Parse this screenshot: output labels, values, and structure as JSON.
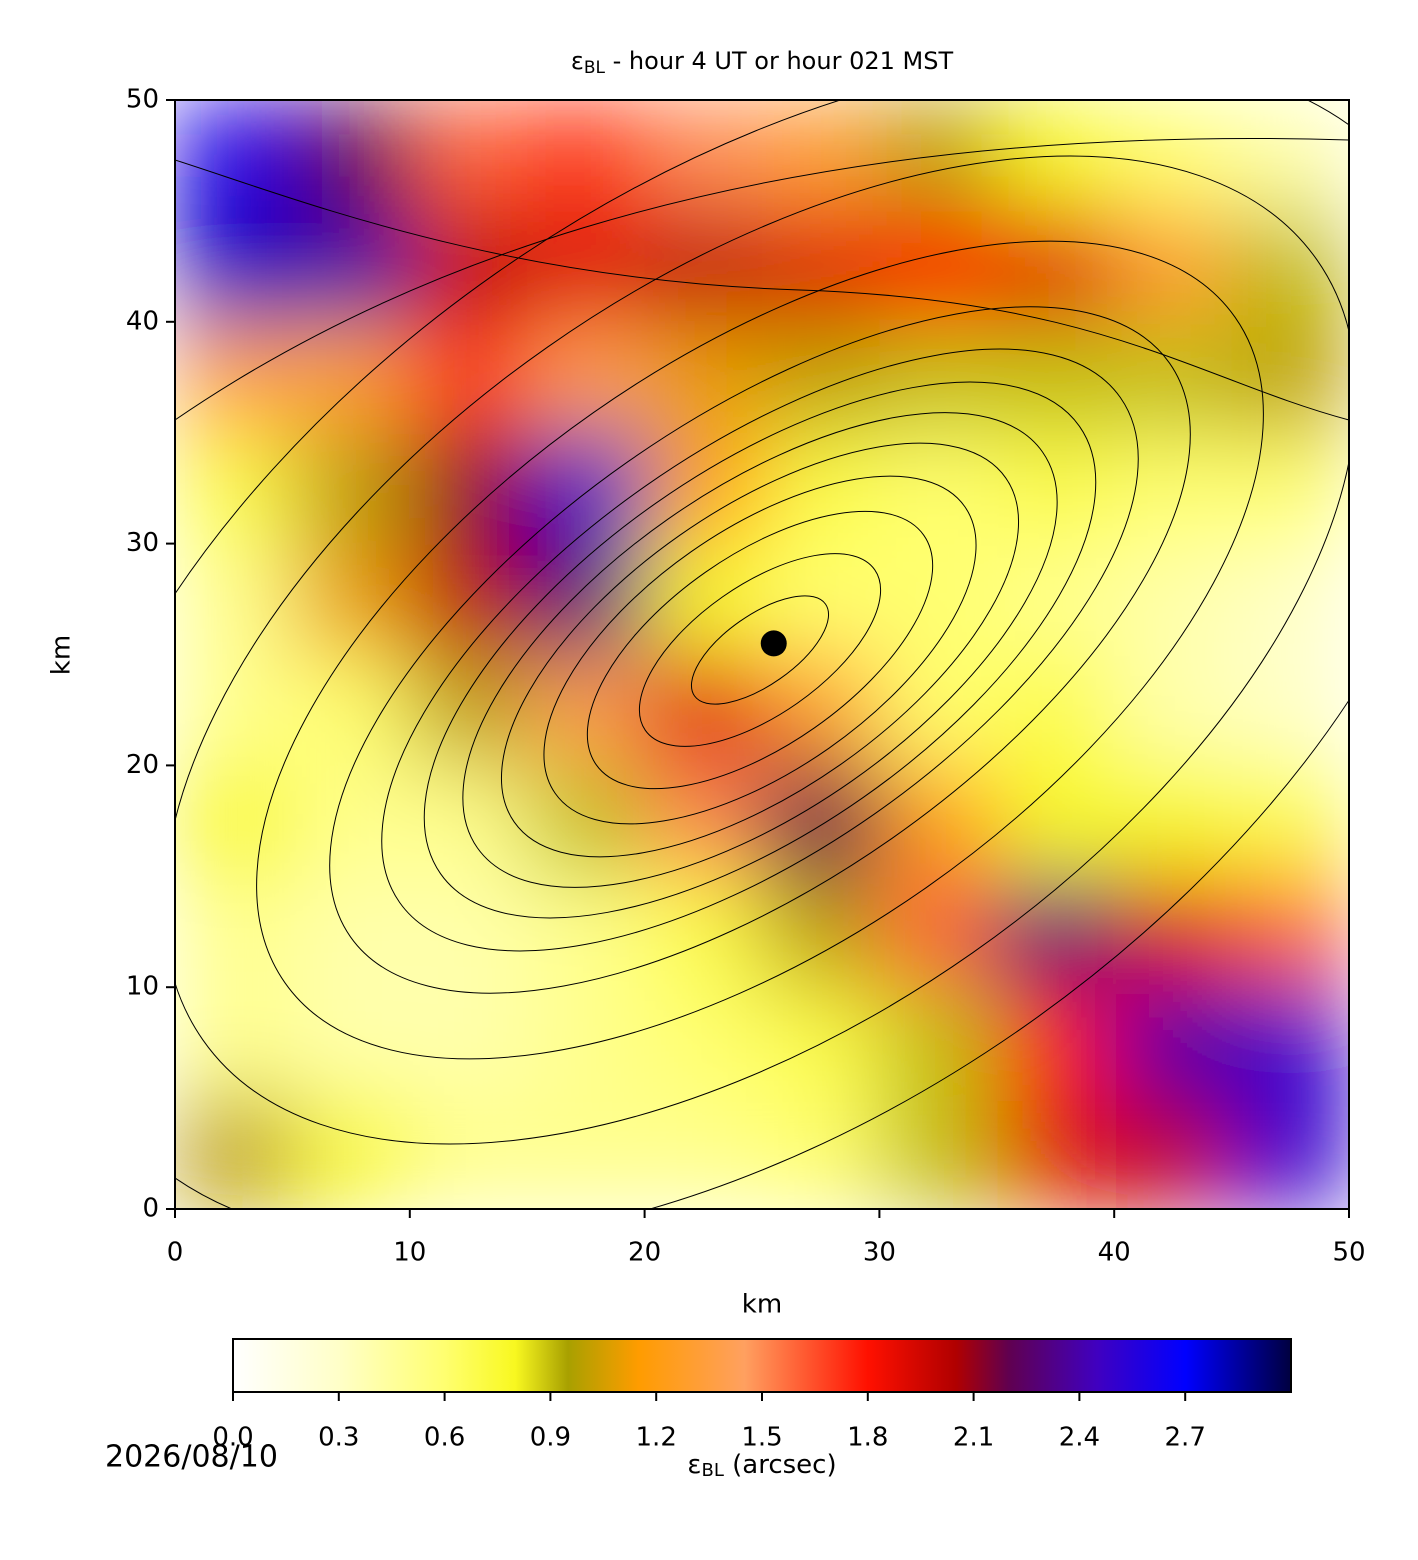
{
  "chart_data": {
    "type": "heatmap",
    "title": {
      "symbol": "ε",
      "subscript": "BL",
      "text": " - hour 4 UT or hour 021 MST"
    },
    "xlabel": "km",
    "ylabel": "km",
    "xlim": [
      0,
      50
    ],
    "ylim": [
      0,
      50
    ],
    "xticks": [
      0,
      10,
      20,
      30,
      40,
      50
    ],
    "yticks": [
      0,
      10,
      20,
      30,
      40,
      50
    ],
    "z": [
      [
        1.0,
        0.8,
        0.5,
        0.5,
        0.5,
        0.6,
        0.9,
        1.9,
        2.0,
        2.5
      ],
      [
        0.5,
        0.4,
        0.4,
        0.5,
        0.6,
        0.7,
        0.9,
        1.8,
        2.4,
        2.5
      ],
      [
        0.5,
        0.4,
        0.4,
        0.5,
        0.7,
        1.0,
        1.6,
        2.3,
        1.9,
        1.6
      ],
      [
        0.8,
        0.5,
        0.5,
        0.9,
        1.5,
        2.2,
        1.2,
        0.8,
        0.8,
        0.7
      ],
      [
        0.5,
        0.6,
        1.0,
        1.4,
        1.9,
        1.3,
        0.6,
        0.7,
        0.4,
        0.3
      ],
      [
        0.5,
        1.1,
        2.0,
        2.3,
        0.8,
        0.6,
        0.6,
        0.5,
        0.4,
        0.3
      ],
      [
        0.7,
        1.0,
        2.1,
        2.5,
        1.2,
        0.7,
        0.6,
        0.7,
        0.6,
        0.6
      ],
      [
        1.4,
        1.3,
        1.7,
        1.4,
        1.1,
        1.0,
        0.9,
        0.9,
        0.9,
        1.0
      ],
      [
        2.8,
        2.4,
        2.0,
        1.9,
        2.0,
        1.9,
        1.8,
        1.9,
        1.3,
        0.9
      ],
      [
        2.6,
        2.2,
        1.6,
        1.7,
        1.5,
        1.3,
        1.0,
        0.8,
        0.6,
        0.4
      ]
    ],
    "marker": {
      "x": 25.5,
      "y": 25.5,
      "color": "#000000"
    },
    "colorbar": {
      "label": {
        "symbol": "ε",
        "subscript": "BL",
        "text": " (arcsec)"
      },
      "lim": [
        0,
        3.0
      ],
      "ticks": [
        {
          "value": 0,
          "label": "0.0"
        },
        0.3,
        0.6,
        0.9,
        1.2,
        1.5,
        1.8,
        2.1,
        2.4,
        2.7
      ],
      "colormap": [
        {
          "value": 0,
          "color": "#ffffff"
        },
        {
          "value": 0.3,
          "color": "#ffffc8"
        },
        {
          "value": 0.6,
          "color": "#ffff70"
        },
        {
          "value": 0.8,
          "color": "#f8f820"
        },
        {
          "value": 0.95,
          "color": "#a8a000"
        },
        {
          "value": 1.15,
          "color": "#ff9c00"
        },
        {
          "value": 1.45,
          "color": "#ffa060"
        },
        {
          "value": 1.8,
          "color": "#ff1000"
        },
        {
          "value": 2.05,
          "color": "#b00000"
        },
        {
          "value": 2.2,
          "color": "#600050"
        },
        {
          "value": 2.45,
          "color": "#4000c0"
        },
        {
          "value": 2.7,
          "color": "#0000ff"
        },
        {
          "value": 3.0,
          "color": "#000040"
        }
      ]
    },
    "date": "2026/08/10"
  }
}
